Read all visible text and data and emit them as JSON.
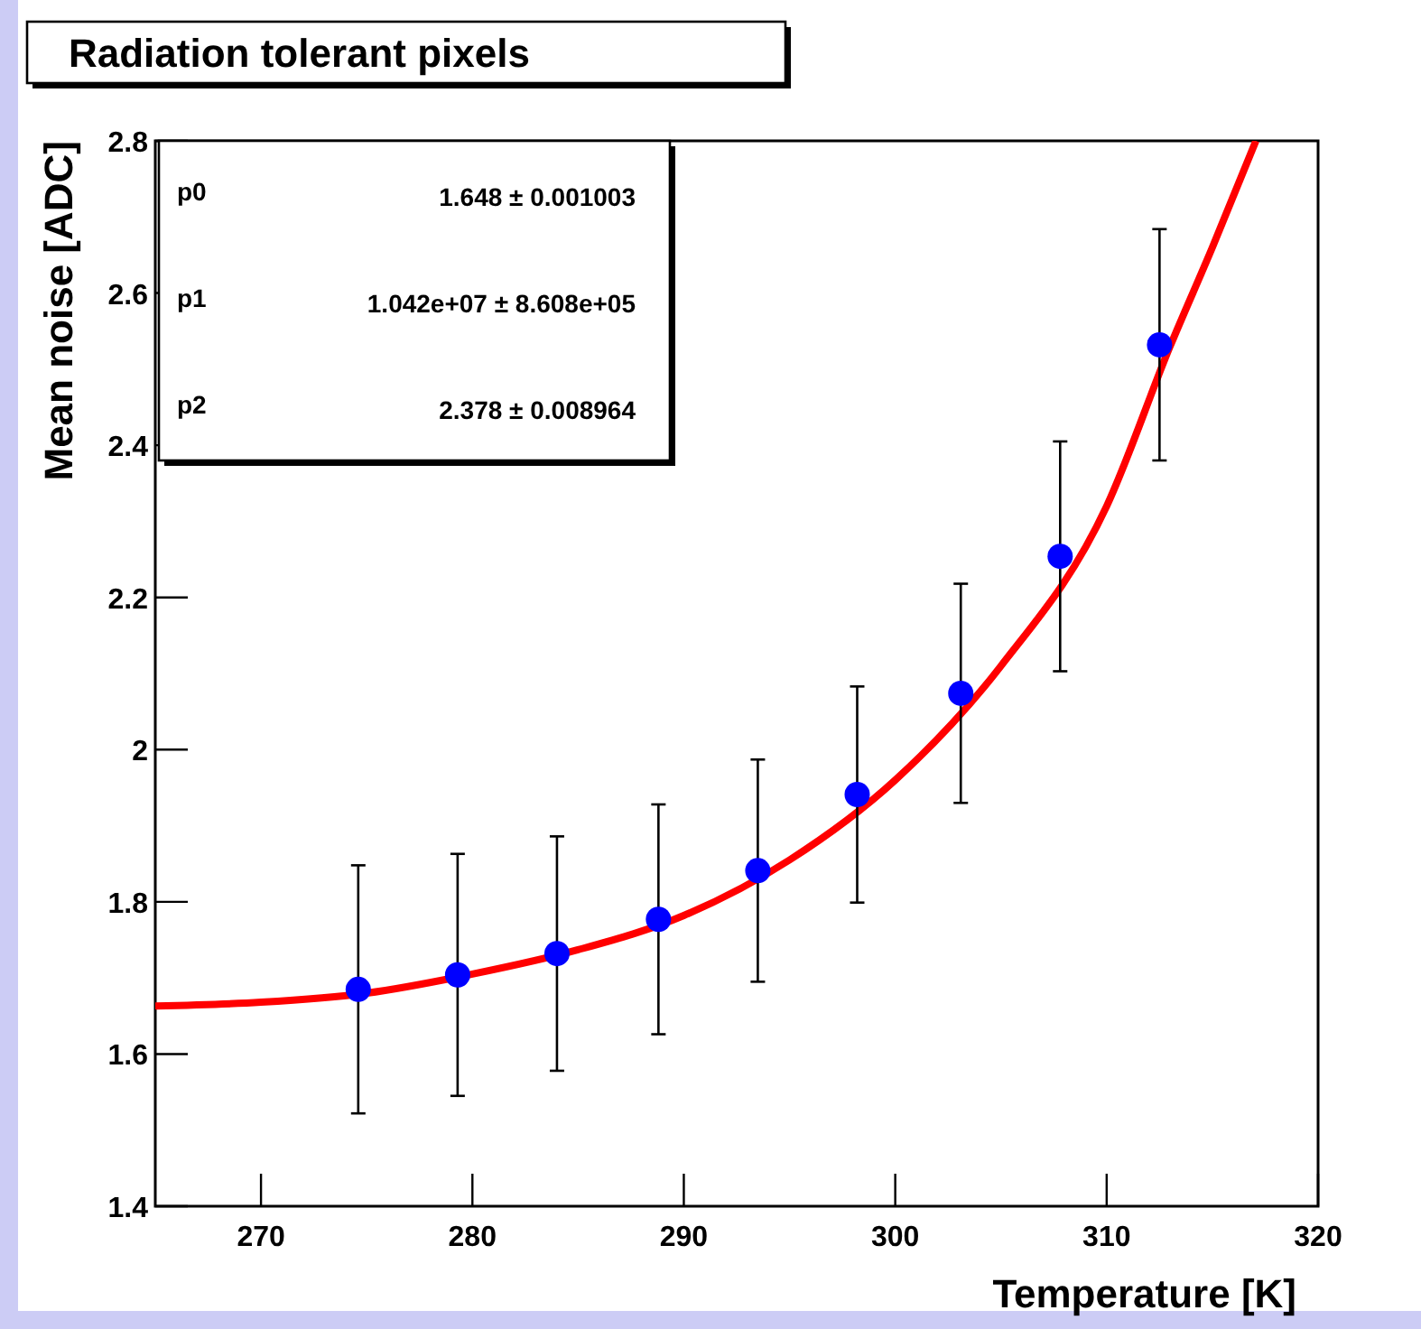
{
  "chart_data": {
    "type": "scatter",
    "title": "Radiation tolerant pixels",
    "xlabel": "Temperature [K]",
    "ylabel": "Mean noise [ADC]",
    "xlim": [
      265,
      320
    ],
    "xticks": [
      270,
      280,
      290,
      300,
      310,
      320
    ],
    "ylim": [
      1.4,
      2.8
    ],
    "yticks": [
      1.4,
      1.6,
      1.8,
      2,
      2.2,
      2.4,
      2.6,
      2.8
    ],
    "grid": false,
    "marker": "circle",
    "annotations": [
      "p0",
      "1.648 ± 0.001003",
      "p1",
      "1.042e+07 ± 8.608e+05",
      "p2",
      "2.378 ± 0.008964"
    ],
    "series": [
      {
        "color": "#0000ff",
        "x": [
          274.6,
          279.3,
          284.0,
          288.8,
          293.5,
          298.2,
          303.1,
          307.8,
          312.5
        ],
        "values": [
          1.685,
          1.704,
          1.732,
          1.777,
          1.841,
          1.941,
          2.074,
          2.254,
          2.532
        ],
        "errors": [
          0.163,
          0.159,
          0.154,
          0.151,
          0.146,
          0.142,
          0.144,
          0.151,
          0.152
        ]
      },
      {
        "type": "line",
        "color": "#ff0000",
        "marker": "none",
        "x": [
          265,
          270,
          275,
          280,
          285,
          290,
          295,
          300,
          305,
          310,
          313,
          315,
          317.06
        ],
        "values": [
          1.663,
          1.668,
          1.68,
          1.705,
          1.737,
          1.782,
          1.855,
          1.96,
          2.11,
          2.32,
          2.53,
          2.66,
          2.8
        ]
      }
    ]
  }
}
